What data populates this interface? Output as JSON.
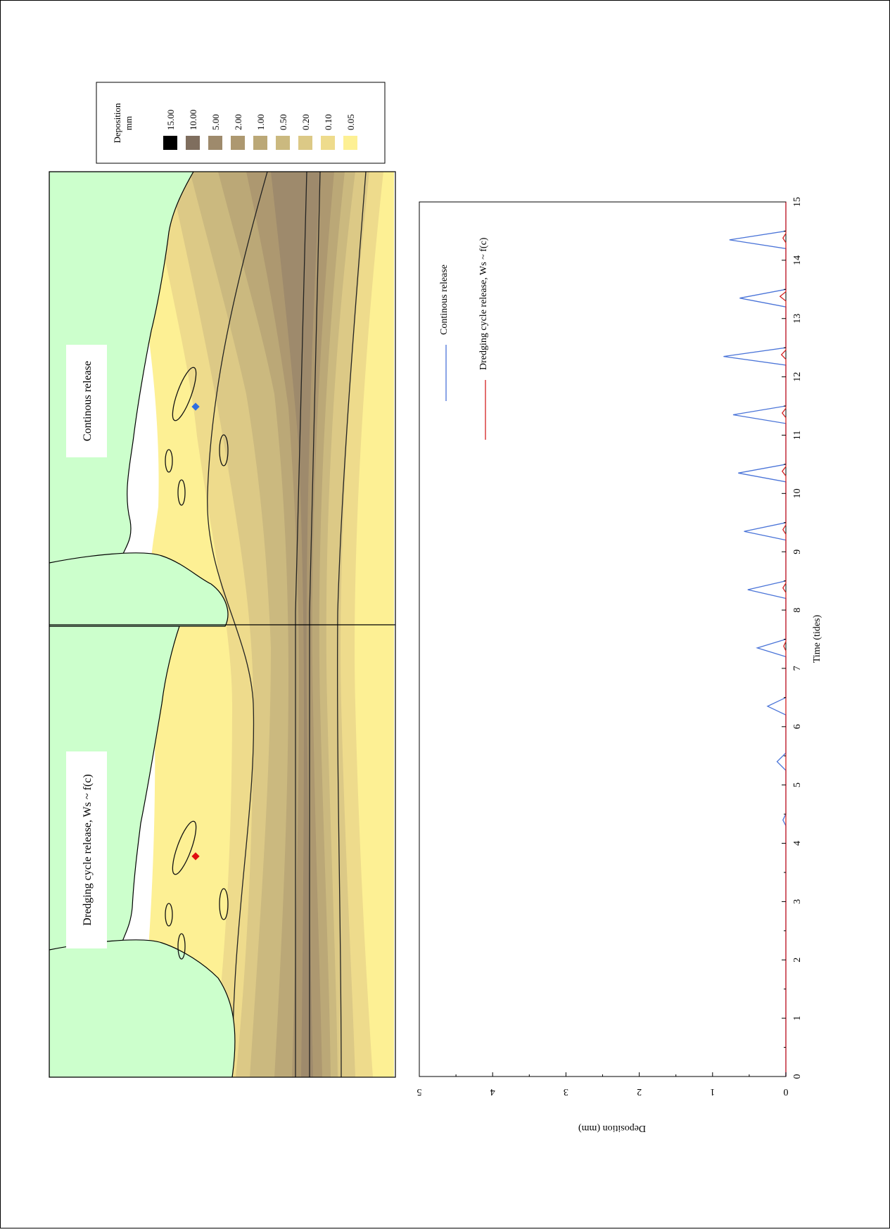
{
  "legend": {
    "title": "Deposition",
    "unit": "mm",
    "levels": [
      {
        "label": "15.00",
        "color": "#000000"
      },
      {
        "label": "10.00",
        "color": "#7f6e5e"
      },
      {
        "label": "5.00",
        "color": "#9e8a6c"
      },
      {
        "label": "2.00",
        "color": "#ad9870"
      },
      {
        "label": "1.00",
        "color": "#bba877"
      },
      {
        "label": "0.50",
        "color": "#cbb97f"
      },
      {
        "label": "0.20",
        "color": "#dcc986"
      },
      {
        "label": "0.10",
        "color": "#eedb8c"
      },
      {
        "label": "0.05",
        "color": "#fdf094"
      }
    ]
  },
  "maps": [
    {
      "label": "Continous release",
      "marker_color": "#2f6fe0"
    },
    {
      "label": "Dredging cycle release,   Ws ~ f(c)",
      "marker_color": "#e01010"
    }
  ],
  "colors": {
    "land": "#ccffcc",
    "continuous": "#4a74d8",
    "dredging": "#d42020"
  },
  "chart_data": {
    "type": "line",
    "title": "",
    "xlabel": "Time (tides)",
    "ylabel": "Deposition (mm)",
    "xlim": [
      0,
      15
    ],
    "ylim": [
      0,
      5
    ],
    "xticks": [
      "0",
      "1",
      "2",
      "3",
      "4",
      "5",
      "6",
      "7",
      "8",
      "9",
      "10",
      "11",
      "12",
      "13",
      "14",
      "15"
    ],
    "yticks": [
      "0",
      "1",
      "2",
      "3",
      "4",
      "5"
    ],
    "grid": false,
    "legend_position": "top-right",
    "series": [
      {
        "name": "Continous release",
        "color": "#4a74d8",
        "x": [
          0,
          3.3,
          4.3,
          4.4,
          4.5,
          5.25,
          5.4,
          5.55,
          6.2,
          6.35,
          6.5,
          7.2,
          7.35,
          7.5,
          8.2,
          8.35,
          8.5,
          9.2,
          9.35,
          9.5,
          10.2,
          10.35,
          10.5,
          11.2,
          11.35,
          11.5,
          12.2,
          12.35,
          12.5,
          13.2,
          13.35,
          13.5,
          14.2,
          14.35,
          14.5,
          15
        ],
        "y": [
          0,
          0,
          0,
          0.04,
          0,
          0,
          0.12,
          0,
          0,
          0.25,
          0,
          0,
          0.39,
          0,
          0,
          0.52,
          0,
          0,
          0.57,
          0,
          0,
          0.65,
          0,
          0,
          0.72,
          0,
          0,
          0.85,
          0,
          0,
          0.63,
          0,
          0,
          0.77,
          0,
          0
        ]
      },
      {
        "name": "Dredging cycle release,   Ws ~ f(c)",
        "color": "#d42020",
        "x": [
          0,
          7.3,
          7.38,
          7.46,
          8.3,
          8.38,
          8.46,
          9.3,
          9.38,
          9.46,
          10.3,
          10.38,
          10.46,
          11.3,
          11.38,
          11.46,
          12.3,
          12.38,
          12.46,
          13.3,
          13.38,
          13.46,
          14.3,
          14.38,
          14.46,
          15
        ],
        "y": [
          0,
          0,
          0.03,
          0,
          0,
          0.04,
          0,
          0,
          0.04,
          0,
          0,
          0.05,
          0,
          0,
          0.05,
          0,
          0,
          0.06,
          0,
          0,
          0.08,
          0,
          0,
          0.04,
          0,
          0
        ]
      }
    ]
  }
}
